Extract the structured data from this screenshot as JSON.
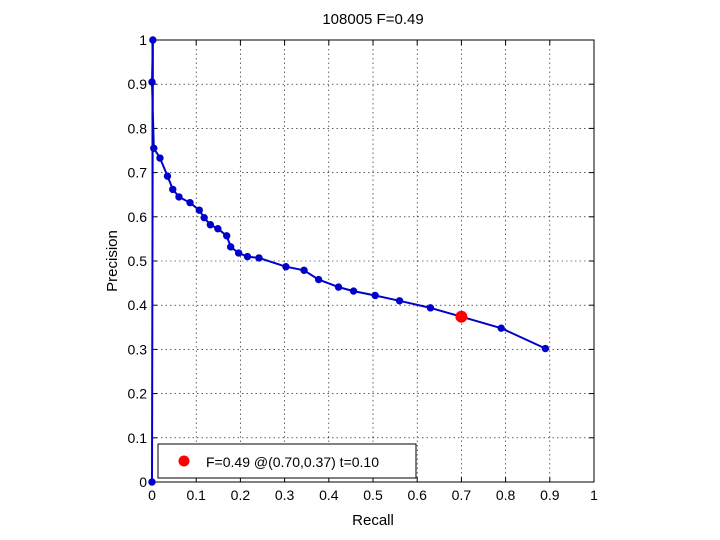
{
  "chart_data": {
    "type": "line",
    "title": "108005 F=0.49",
    "xlabel": "Recall",
    "ylabel": "Precision",
    "xlim": [
      0,
      1
    ],
    "ylim": [
      0,
      1
    ],
    "xticks": [
      "0",
      "0.1",
      "0.2",
      "0.3",
      "0.4",
      "0.5",
      "0.6",
      "0.7",
      "0.8",
      "0.9",
      "1"
    ],
    "yticks": [
      "0",
      "0.1",
      "0.2",
      "0.3",
      "0.4",
      "0.5",
      "0.6",
      "0.7",
      "0.8",
      "0.9",
      "1"
    ],
    "grid": true,
    "legend_position": "bottom-left",
    "series": [
      {
        "color": "#0000cc",
        "x": [
          0.0,
          0.002,
          0.0,
          0.004,
          0.018,
          0.035,
          0.047,
          0.061,
          0.086,
          0.107,
          0.118,
          0.132,
          0.149,
          0.169,
          0.178,
          0.196,
          0.216,
          0.242,
          0.303,
          0.344,
          0.377,
          0.422,
          0.456,
          0.505,
          0.56,
          0.63,
          0.7,
          0.79,
          0.89
        ],
        "y": [
          0.0,
          1.0,
          0.905,
          0.755,
          0.733,
          0.692,
          0.662,
          0.645,
          0.632,
          0.615,
          0.598,
          0.582,
          0.573,
          0.557,
          0.532,
          0.518,
          0.51,
          0.507,
          0.487,
          0.479,
          0.458,
          0.441,
          0.432,
          0.422,
          0.41,
          0.394,
          0.374,
          0.348,
          0.302
        ]
      }
    ],
    "best_point": {
      "x": 0.7,
      "y": 0.374,
      "color": "#ff0000"
    },
    "legend": {
      "label": "F=0.49 @(0.70,0.37) t=0.10"
    }
  }
}
